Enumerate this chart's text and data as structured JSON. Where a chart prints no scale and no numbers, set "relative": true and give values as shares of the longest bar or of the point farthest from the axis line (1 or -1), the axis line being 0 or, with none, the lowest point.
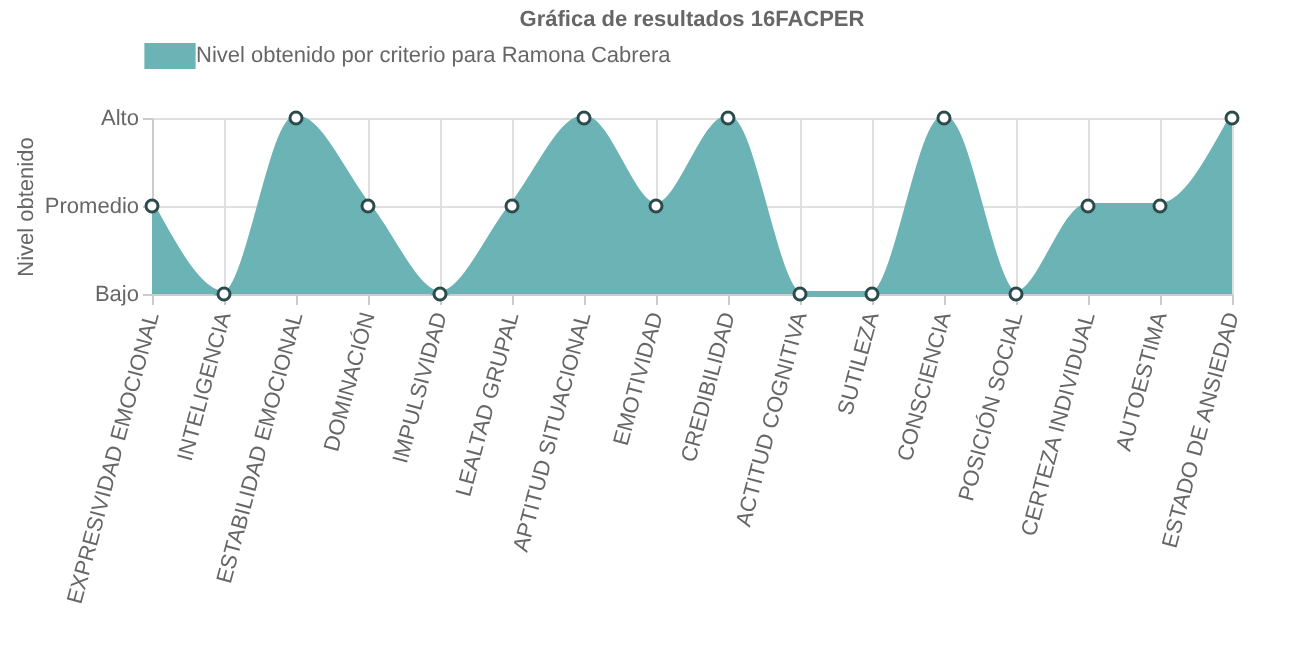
{
  "chart_data": {
    "type": "area",
    "title": "Gráfica de resultados 16FACPER",
    "ylabel": "Nivel obtenido",
    "categories": [
      "EXPRESIVIDAD EMOCIONAL",
      "INTELIGENCIA",
      "ESTABILIDAD EMOCIONAL",
      "DOMINACIÓN",
      "IMPULSIVIDAD",
      "LEALTAD GRUPAL",
      "APTITUD SITUACIONAL",
      "EMOTIVIDAD",
      "CREDIBILIDAD",
      "ACTITUD COGNITIVA",
      "SUTILEZA",
      "CONSCIENCIA",
      "POSICIÓN SOCIAL",
      "CERTEZA INDIVIDUAL",
      "AUTOESTIMA",
      "ESTADO DE ANSIEDAD"
    ],
    "y_categories": [
      "Alto",
      "Promedio",
      "Bajo"
    ],
    "relative": true,
    "series": [
      {
        "name": "Nivel obtenido por criterio para Ramona Cabrera",
        "color": "#6bb3b5",
        "values": [
          0.5,
          0,
          1,
          0.5,
          0,
          0.5,
          1,
          0.5,
          1,
          0,
          0,
          1,
          0,
          0.5,
          0.5,
          1
        ]
      }
    ],
    "grid": true,
    "legend": "top",
    "marker": "circle"
  }
}
